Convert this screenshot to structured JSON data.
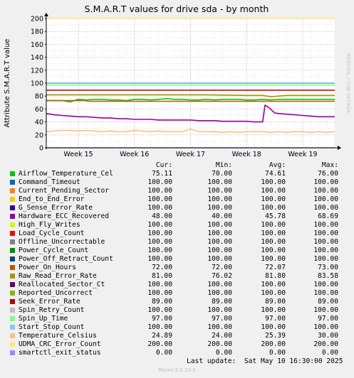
{
  "chart_data": {
    "type": "line",
    "title": "S.M.A.R.T values for drive sda - by month",
    "ylabel": "Attribute S.M.A.R.T value",
    "watermark": "RRDTOOL / TOBI OETIKER",
    "ylim": [
      0,
      200
    ],
    "yticks": [
      0,
      20,
      40,
      60,
      80,
      100,
      120,
      140,
      160,
      180,
      200
    ],
    "xlim": [
      0,
      36
    ],
    "x_tick_labels": [
      {
        "x": 4,
        "label": "Week 15"
      },
      {
        "x": 11,
        "label": "Week 16"
      },
      {
        "x": 18,
        "label": "Week 17"
      },
      {
        "x": 25,
        "label": "Week 18"
      },
      {
        "x": 32,
        "label": "Week 19"
      }
    ],
    "grid": true,
    "series": [
      {
        "name": "Airflow_Temperature_Cel",
        "color": "#00cc00",
        "cur": "75.11",
        "min": "70.00",
        "avg": "74.61",
        "max": "76.00",
        "x": [
          0,
          2,
          3,
          4,
          5,
          6,
          7,
          8,
          9,
          10,
          11,
          12,
          13,
          14,
          15,
          16,
          17,
          18,
          19,
          20,
          21,
          22,
          23,
          24,
          25,
          26,
          27,
          28,
          29,
          30,
          31,
          32,
          33,
          34,
          35,
          36
        ],
        "y": [
          73,
          73,
          71,
          75,
          74,
          75,
          75,
          74,
          74,
          73,
          75,
          75,
          74,
          75,
          76,
          75,
          75,
          74,
          74,
          75,
          74,
          75,
          75,
          75,
          74,
          74,
          75,
          74,
          75,
          75,
          75,
          75,
          75,
          75,
          75,
          75
        ]
      },
      {
        "name": "Command_Timeout",
        "color": "#0066b3",
        "cur": "100.00",
        "min": "100.00",
        "avg": "100.00",
        "max": "100.00",
        "x": [
          0,
          36
        ],
        "y": [
          100,
          100
        ]
      },
      {
        "name": "Current_Pending_Sector",
        "color": "#ff8000",
        "cur": "100.00",
        "min": "100.00",
        "avg": "100.00",
        "max": "100.00",
        "x": [
          0,
          36
        ],
        "y": [
          100,
          100
        ]
      },
      {
        "name": "End_to_End_Error",
        "color": "#ffcc00",
        "cur": "100.00",
        "min": "100.00",
        "avg": "100.00",
        "max": "100.00",
        "x": [
          0,
          36
        ],
        "y": [
          100,
          100
        ]
      },
      {
        "name": "G_Sense_Error_Rate",
        "color": "#330099",
        "cur": "100.00",
        "min": "100.00",
        "avg": "100.00",
        "max": "100.00",
        "x": [
          0,
          36
        ],
        "y": [
          100,
          100
        ]
      },
      {
        "name": "Hardware_ECC_Recovered",
        "color": "#990099",
        "cur": "48.00",
        "min": "40.00",
        "avg": "45.78",
        "max": "68.69",
        "x": [
          0,
          1,
          2,
          3,
          4,
          5,
          6,
          7,
          8,
          9,
          10,
          11,
          12,
          13,
          14,
          15,
          16,
          17,
          18,
          19,
          20,
          21,
          22,
          23,
          24,
          25,
          26,
          27,
          27.3,
          27.8,
          28.5,
          29,
          30,
          31,
          32,
          33,
          34,
          35,
          36
        ],
        "y": [
          53,
          51,
          50,
          49,
          48,
          48,
          47,
          46,
          46,
          45,
          45,
          44,
          44,
          44,
          43,
          43,
          43,
          43,
          43,
          42,
          42,
          42,
          41,
          41,
          41,
          41,
          40,
          40,
          66,
          62,
          54,
          53,
          52,
          51,
          50,
          49,
          48,
          48,
          48
        ]
      },
      {
        "name": "High_Fly_Writes",
        "color": "#ccff00",
        "cur": "100.00",
        "min": "100.00",
        "avg": "100.00",
        "max": "100.00",
        "x": [
          0,
          36
        ],
        "y": [
          100,
          100
        ]
      },
      {
        "name": "Load_Cycle_Count",
        "color": "#ff0000",
        "cur": "100.00",
        "min": "100.00",
        "avg": "100.00",
        "max": "100.00",
        "x": [
          0,
          36
        ],
        "y": [
          100,
          100
        ]
      },
      {
        "name": "Offline_Uncorrectable",
        "color": "#808080",
        "cur": "100.00",
        "min": "100.00",
        "avg": "100.00",
        "max": "100.00",
        "x": [
          0,
          36
        ],
        "y": [
          100,
          100
        ]
      },
      {
        "name": "Power_Cycle_Count",
        "color": "#008f00",
        "cur": "100.00",
        "min": "100.00",
        "avg": "100.00",
        "max": "100.00",
        "x": [
          0,
          36
        ],
        "y": [
          100,
          100
        ]
      },
      {
        "name": "Power_Off_Retract_Count",
        "color": "#00487d",
        "cur": "100.00",
        "min": "100.00",
        "avg": "100.00",
        "max": "100.00",
        "x": [
          0,
          36
        ],
        "y": [
          100,
          100
        ]
      },
      {
        "name": "Power_On_Hours",
        "color": "#b35a00",
        "cur": "72.00",
        "min": "72.00",
        "avg": "72.07",
        "max": "73.00",
        "x": [
          0,
          5,
          5.2,
          36
        ],
        "y": [
          73,
          73,
          72,
          72
        ]
      },
      {
        "name": "Raw_Read_Error_Rate",
        "color": "#b38f00",
        "cur": "81.00",
        "min": "76.02",
        "avg": "81.80",
        "max": "83.58",
        "x": [
          0,
          5,
          10,
          15,
          20,
          25,
          27,
          28,
          30,
          36
        ],
        "y": [
          82,
          82,
          82,
          82,
          82,
          81,
          81,
          79,
          81,
          81
        ]
      },
      {
        "name": "Reallocated_Sector_Ct",
        "color": "#6b006b",
        "cur": "100.00",
        "min": "100.00",
        "avg": "100.00",
        "max": "100.00",
        "x": [
          0,
          36
        ],
        "y": [
          100,
          100
        ]
      },
      {
        "name": "Reported_Uncorrect",
        "color": "#8fb300",
        "cur": "100.00",
        "min": "100.00",
        "avg": "100.00",
        "max": "100.00",
        "x": [
          0,
          36
        ],
        "y": [
          100,
          100
        ]
      },
      {
        "name": "Seek_Error_Rate",
        "color": "#b30000",
        "cur": "89.00",
        "min": "89.00",
        "avg": "89.00",
        "max": "89.00",
        "x": [
          0,
          36
        ],
        "y": [
          89,
          89
        ]
      },
      {
        "name": "Spin_Retry_Count",
        "color": "#bebebe",
        "cur": "100.00",
        "min": "100.00",
        "avg": "100.00",
        "max": "100.00",
        "x": [
          0,
          36
        ],
        "y": [
          100,
          100
        ]
      },
      {
        "name": "Spin_Up_Time",
        "color": "#80ff80",
        "cur": "97.00",
        "min": "97.00",
        "avg": "97.00",
        "max": "97.00",
        "x": [
          0,
          36
        ],
        "y": [
          97,
          97
        ]
      },
      {
        "name": "Start_Stop_Count",
        "color": "#80c9ff",
        "cur": "100.00",
        "min": "100.00",
        "avg": "100.00",
        "max": "100.00",
        "x": [
          0,
          36
        ],
        "y": [
          100,
          100
        ]
      },
      {
        "name": "Temperature_Celsius",
        "color": "#ffc080",
        "cur": "24.89",
        "min": "24.00",
        "avg": "25.39",
        "max": "30.00",
        "x": [
          0,
          1,
          2,
          3,
          4,
          5,
          6,
          7,
          8,
          9,
          10,
          11,
          12,
          13,
          14,
          15,
          16,
          17,
          18,
          19,
          20,
          21,
          22,
          23,
          24,
          25,
          26,
          27,
          28,
          29,
          30,
          31,
          32,
          33,
          34,
          35,
          36
        ],
        "y": [
          25,
          26,
          27,
          27,
          26,
          27,
          26,
          25,
          26,
          25,
          25,
          27,
          26,
          25,
          26,
          25,
          25,
          25,
          29,
          25,
          25,
          25,
          24,
          25,
          24,
          25,
          25,
          25,
          24,
          25,
          24,
          25,
          25,
          24,
          25,
          24,
          25
        ]
      },
      {
        "name": "UDMA_CRC_Error_Count",
        "color": "#ffe680",
        "cur": "200.00",
        "min": "200.00",
        "avg": "200.00",
        "max": "200.00",
        "x": [
          0,
          36
        ],
        "y": [
          200,
          200
        ]
      },
      {
        "name": "smartctl_exit_status",
        "color": "#aa80ff",
        "cur": "0.00",
        "min": "0.00",
        "avg": "0.00",
        "max": "0.00",
        "x": [
          0,
          36
        ],
        "y": [
          0,
          0
        ]
      }
    ]
  },
  "legend_header": {
    "cur": "Cur:",
    "min": "Min:",
    "avg": "Avg:",
    "max": "Max:"
  },
  "last_update": "Last update:  Sat May 10 16:30:00 2025",
  "footer": "Munin 2.0.33-1"
}
